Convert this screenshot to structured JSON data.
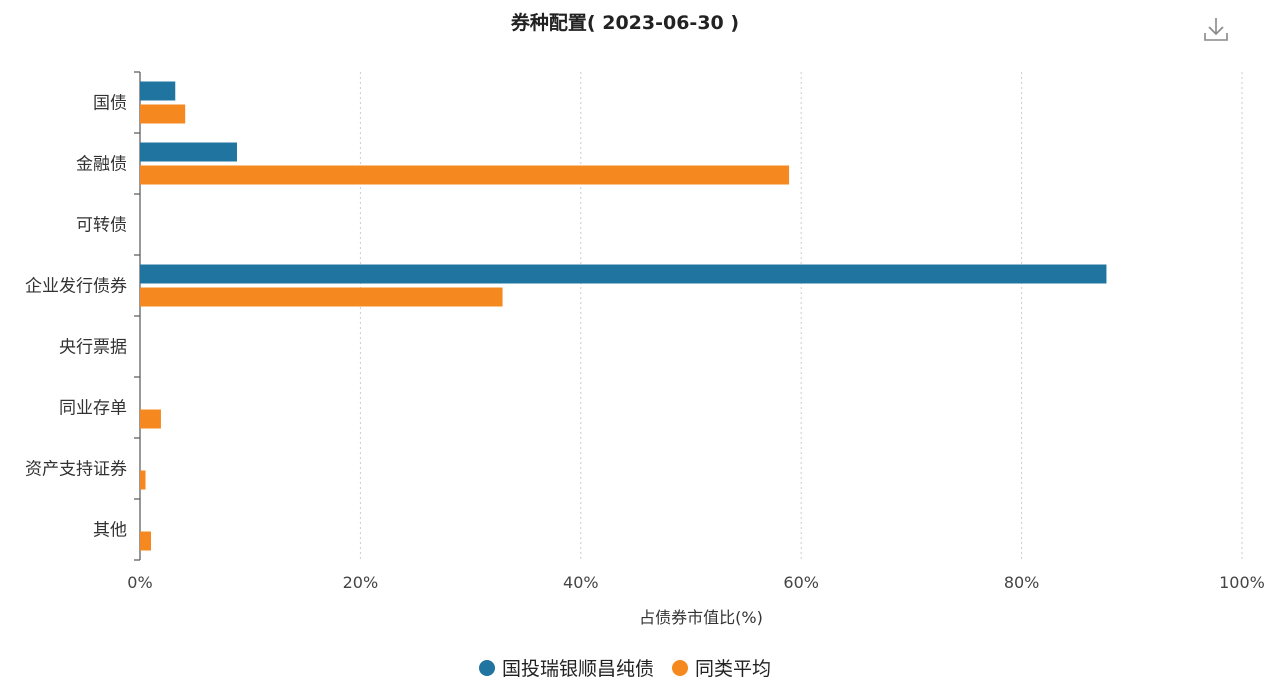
{
  "toolbar": {
    "download_icon": "download-icon"
  },
  "colors": {
    "series1": "#1f74a0",
    "series2": "#f5891f",
    "axis": "#555555",
    "grid": "#cccccc"
  },
  "chart_data": {
    "type": "bar",
    "orientation": "horizontal",
    "title": "券种配置( 2023-06-30 )",
    "xlabel": "占债券市值比(%)",
    "ylabel": "",
    "xlim": [
      0,
      100
    ],
    "xticks": [
      "0%",
      "20%",
      "40%",
      "60%",
      "80%",
      "100%"
    ],
    "grid": true,
    "legend_position": "bottom-center",
    "categories": [
      "国债",
      "金融债",
      "可转债",
      "企业发行债券",
      "央行票据",
      "同业存单",
      "资产支持证券",
      "其他"
    ],
    "series": [
      {
        "name": "国投瑞银顺昌纯债",
        "values": [
          3.2,
          8.8,
          0,
          87.7,
          0,
          0,
          0,
          0
        ]
      },
      {
        "name": "同类平均",
        "values": [
          4.1,
          58.9,
          0,
          32.9,
          0,
          1.9,
          0.5,
          1.0
        ]
      }
    ]
  }
}
